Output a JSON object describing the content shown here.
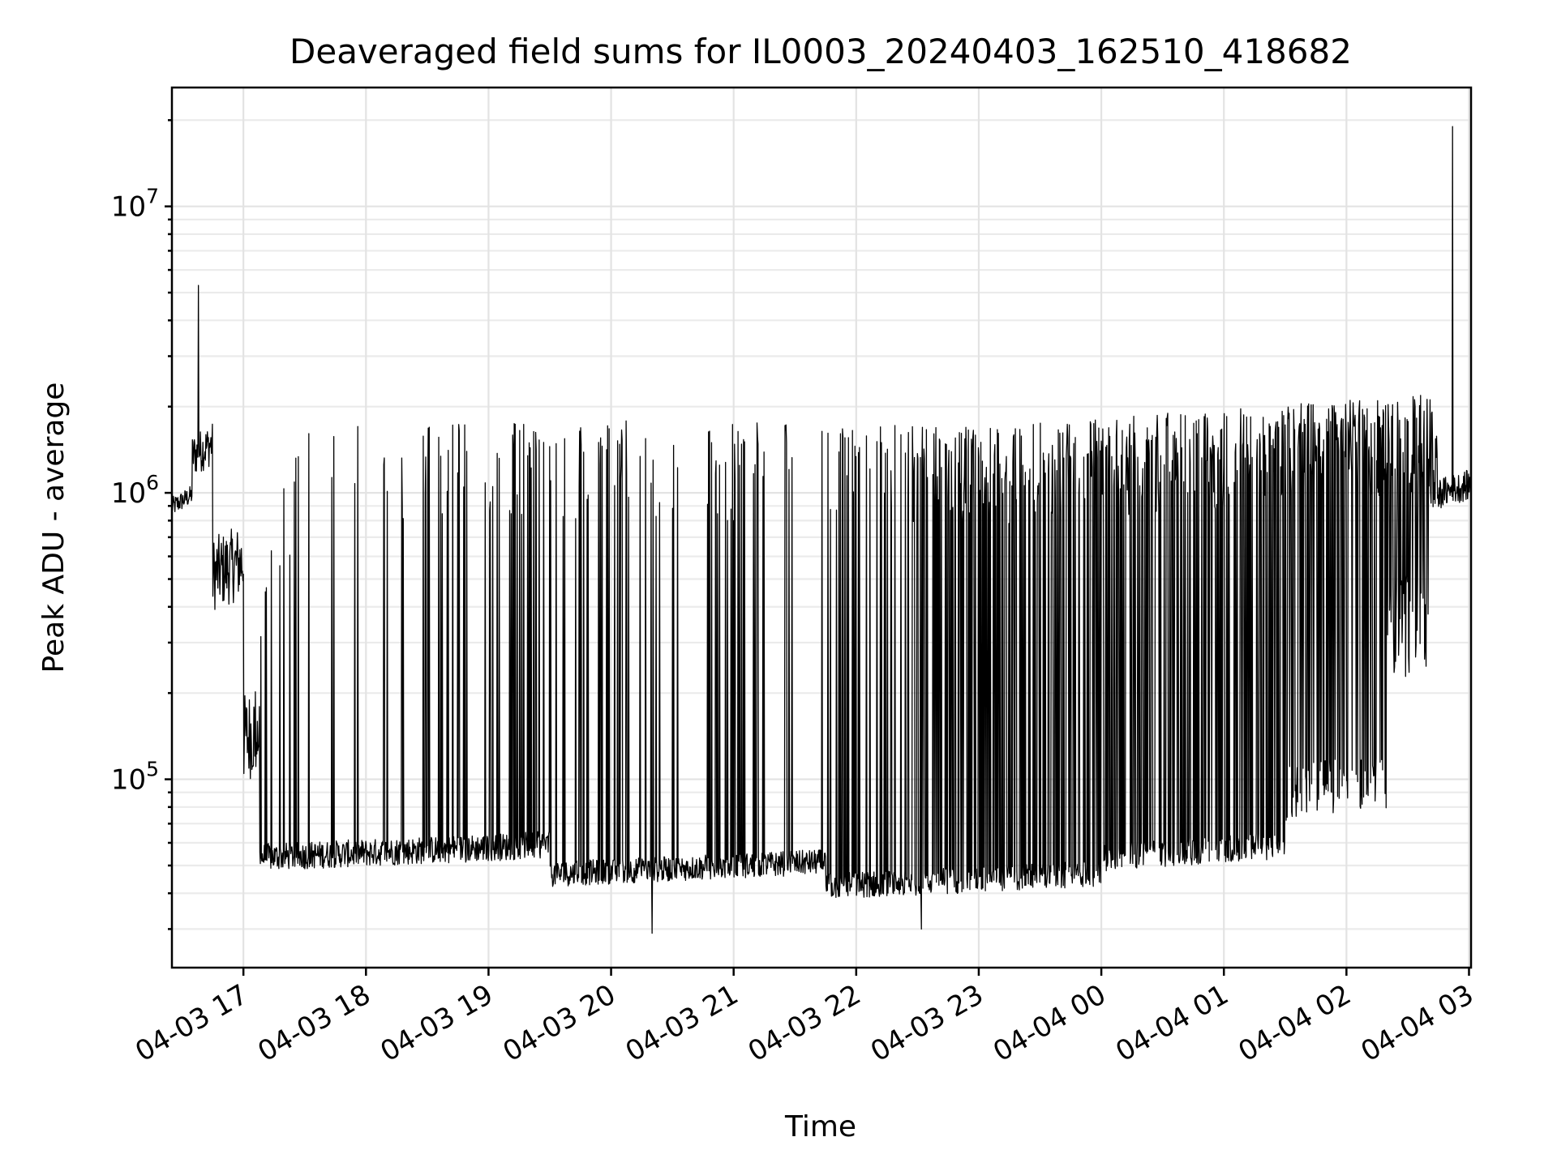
{
  "chart_data": {
    "type": "line",
    "title": "Deaveraged field sums for IL0003_20240403_162510_418682",
    "xlabel": "Time",
    "ylabel": "Peak ADU - average",
    "yscale": "log",
    "ylim": [
      22000,
      26000000
    ],
    "xlim": [
      "2024-04-03 16:25",
      "2024-04-04 03:01"
    ],
    "grid": "on (major and minor)",
    "line_color": "#000000",
    "x_ticks": [
      "04-03 17",
      "04-03 18",
      "04-03 19",
      "04-03 20",
      "04-03 21",
      "04-03 22",
      "04-03 23",
      "04-04 00",
      "04-04 01",
      "04-04 02",
      "04-04 03"
    ],
    "y_ticks": [
      {
        "base": "10",
        "exp": "5",
        "value": 100000
      },
      {
        "base": "10",
        "exp": "6",
        "value": 1000000
      },
      {
        "base": "10",
        "exp": "7",
        "value": 10000000
      }
    ],
    "baseline_segments": [
      {
        "start": "2024-04-03 16:25",
        "end": "2024-04-03 16:35",
        "low": 800000,
        "high": 1100000
      },
      {
        "start": "2024-04-03 16:35",
        "end": "2024-04-03 16:45",
        "low": 1000000,
        "high": 2000000
      },
      {
        "start": "2024-04-03 16:45",
        "end": "2024-04-03 17:00",
        "low": 300000,
        "high": 1000000
      },
      {
        "start": "2024-04-03 17:00",
        "end": "2024-04-03 17:08",
        "low": 70000,
        "high": 300000
      },
      {
        "start": "2024-04-03 17:08",
        "end": "2024-04-03 19:30",
        "low": 45000,
        "high": 70000
      },
      {
        "start": "2024-04-03 19:30",
        "end": "2024-04-03 21:45",
        "low": 40000,
        "high": 60000
      },
      {
        "start": "2024-04-03 21:45",
        "end": "2024-04-04 00:00",
        "low": 36000,
        "high": 55000
      },
      {
        "start": "2024-04-04 00:00",
        "end": "2024-04-04 01:30",
        "low": 45000,
        "high": 70000
      },
      {
        "start": "2024-04-04 01:30",
        "end": "2024-04-04 02:20",
        "low": 60000,
        "high": 150000
      },
      {
        "start": "2024-04-04 02:20",
        "end": "2024-04-04 02:40",
        "low": 150000,
        "high": 800000
      },
      {
        "start": "2024-04-04 02:40",
        "end": "2024-04-04 03:01",
        "low": 800000,
        "high": 1300000
      }
    ],
    "spike_envelope": [
      {
        "time": "2024-04-03 17:00",
        "peak": 400000
      },
      {
        "time": "2024-04-03 17:30",
        "peak": 1700000
      },
      {
        "time": "2024-04-03 18:30",
        "peak": 1800000
      },
      {
        "time": "2024-04-03 20:00",
        "peak": 1800000
      },
      {
        "time": "2024-04-03 21:45",
        "peak": 1750000
      },
      {
        "time": "2024-04-03 23:00",
        "peak": 1700000
      },
      {
        "time": "2024-04-04 00:30",
        "peak": 1900000
      },
      {
        "time": "2024-04-04 02:00",
        "peak": 2100000
      },
      {
        "time": "2024-04-04 02:40",
        "peak": 2200000
      }
    ],
    "spike_gaps": [
      {
        "start": "2024-04-03 20:35",
        "end": "2024-04-03 20:47"
      },
      {
        "start": "2024-04-03 21:15",
        "end": "2024-04-03 21:25"
      },
      {
        "start": "2024-04-03 21:30",
        "end": "2024-04-03 21:43"
      }
    ],
    "notable_points": [
      {
        "time": "2024-04-03 16:38",
        "value": 5300000
      },
      {
        "time": "2024-04-04 02:52",
        "value": 19000000
      },
      {
        "time": "2024-04-03 20:20",
        "value": 29000
      },
      {
        "time": "2024-04-03 22:32",
        "value": 30000
      }
    ]
  }
}
